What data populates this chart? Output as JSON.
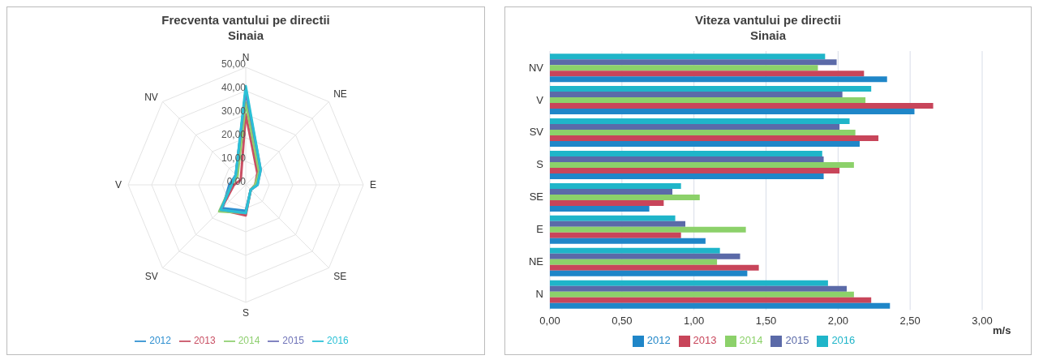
{
  "chart_data": [
    {
      "type": "radar",
      "title": "Frecventa vantului pe directii",
      "subtitle": "Sinaia",
      "categories": [
        "N",
        "NE",
        "E",
        "SE",
        "S",
        "SV",
        "V",
        "NV"
      ],
      "series": [
        {
          "name": "2012",
          "color": "#2e8fd0",
          "values": [
            40,
            8,
            5,
            3,
            11,
            14,
            7,
            6
          ]
        },
        {
          "name": "2013",
          "color": "#c94f63",
          "values": [
            30,
            7,
            4,
            3,
            13,
            15,
            5,
            3
          ]
        },
        {
          "name": "2014",
          "color": "#8fcf70",
          "values": [
            35,
            8,
            4,
            3,
            12,
            16,
            6,
            5
          ]
        },
        {
          "name": "2015",
          "color": "#6f73b8",
          "values": [
            40,
            9,
            5,
            3,
            12,
            15,
            6,
            6
          ]
        },
        {
          "name": "2016",
          "color": "#2ac1d6",
          "values": [
            42,
            9,
            5,
            3,
            12,
            15,
            6,
            6
          ]
        }
      ],
      "ylim": [
        0,
        50
      ],
      "yticks": [
        {
          "value": 0,
          "label": "0,00"
        },
        {
          "value": 10,
          "label": "10,00"
        },
        {
          "value": 20,
          "label": "20,00"
        },
        {
          "value": 30,
          "label": "30,00"
        },
        {
          "value": 40,
          "label": "40,00"
        },
        {
          "value": 50,
          "label": "50,00"
        }
      ],
      "grid": true,
      "legend": "bottom"
    },
    {
      "type": "bar",
      "orientation": "horizontal",
      "title": "Viteza vantului pe directii",
      "subtitle": "Sinaia",
      "xlabel": "m/s",
      "categories": [
        "NV",
        "V",
        "SV",
        "S",
        "SE",
        "E",
        "NE",
        "N"
      ],
      "series": [
        {
          "name": "2016",
          "color": "#1fb5c9",
          "values": [
            1.91,
            2.23,
            2.08,
            1.89,
            0.91,
            0.87,
            1.18,
            1.93
          ]
        },
        {
          "name": "2015",
          "color": "#5b6aa8",
          "values": [
            1.99,
            2.03,
            2.01,
            1.9,
            0.85,
            0.94,
            1.32,
            2.06
          ]
        },
        {
          "name": "2014",
          "color": "#8cd16a",
          "values": [
            1.86,
            2.19,
            2.12,
            2.11,
            1.04,
            1.36,
            1.16,
            2.11
          ]
        },
        {
          "name": "2013",
          "color": "#c8455a",
          "values": [
            2.18,
            2.66,
            2.28,
            2.01,
            0.79,
            0.91,
            1.45,
            2.23
          ]
        },
        {
          "name": "2012",
          "color": "#1f86c8",
          "values": [
            2.34,
            2.53,
            2.15,
            1.9,
            0.69,
            1.08,
            1.37,
            2.36
          ]
        }
      ],
      "xlim": [
        0,
        3
      ],
      "xticks": [
        {
          "value": 0,
          "label": "0,00"
        },
        {
          "value": 0.5,
          "label": "0,50"
        },
        {
          "value": 1,
          "label": "1,00"
        },
        {
          "value": 1.5,
          "label": "1,50"
        },
        {
          "value": 2,
          "label": "2,00"
        },
        {
          "value": 2.5,
          "label": "2,50"
        },
        {
          "value": 3,
          "label": "3,00"
        }
      ],
      "grid": "x",
      "legend": "bottom"
    }
  ]
}
